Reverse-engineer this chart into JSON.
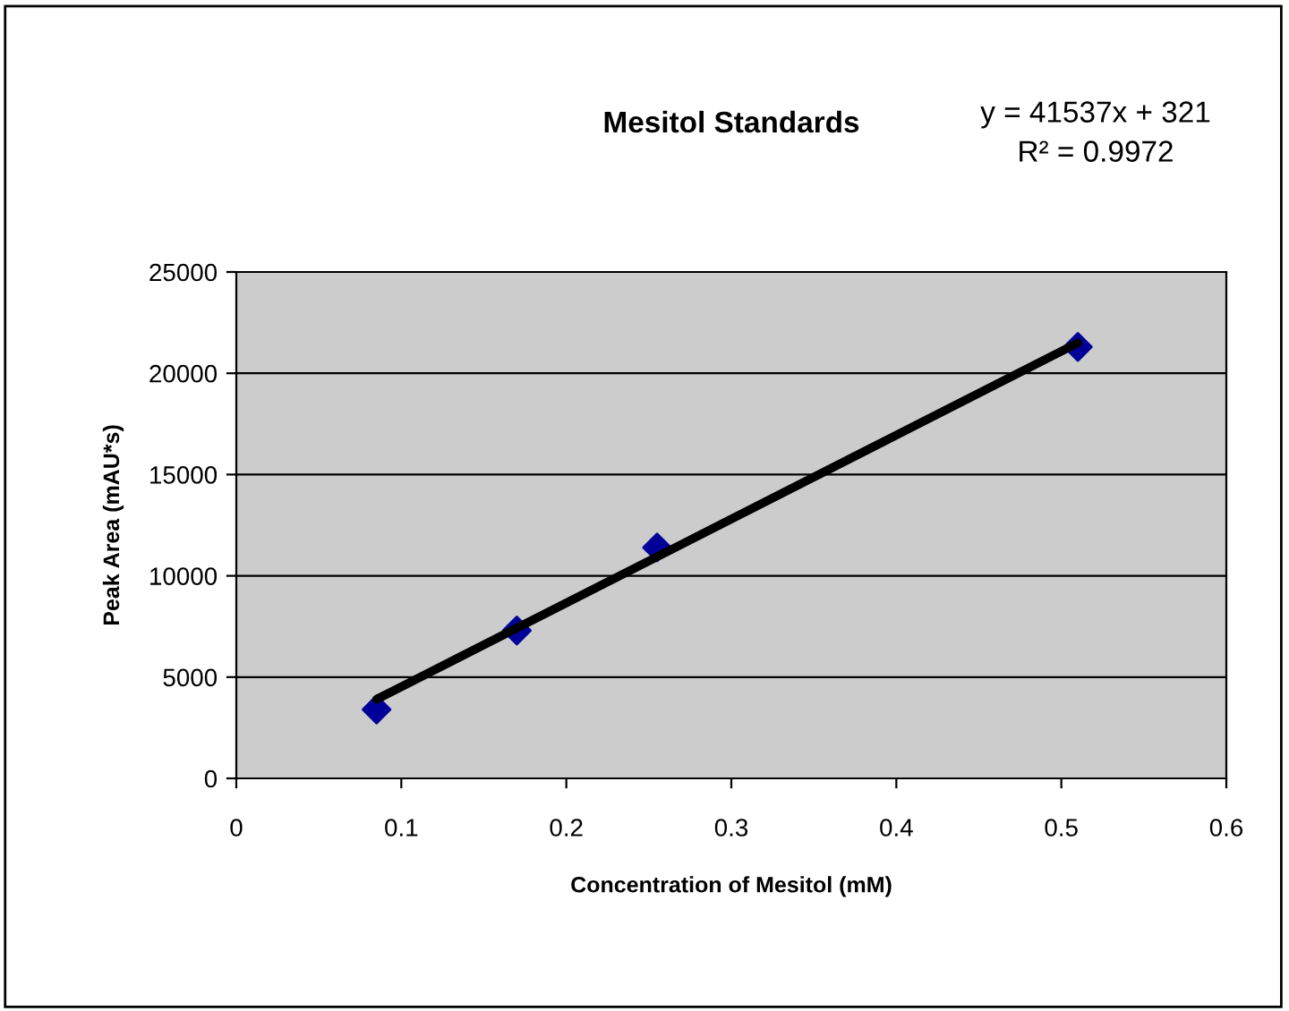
{
  "chart_data": {
    "type": "scatter",
    "title": "Mesitol Standards",
    "xlabel": "Concentration of Mesitol (mM)",
    "ylabel": "Peak Area (mAU*s)",
    "series": [
      {
        "color": "#000099",
        "x": [
          0.085,
          0.17,
          0.255,
          0.51
        ],
        "values": [
          3400,
          7300,
          11400,
          21300
        ],
        "marker": "diamond"
      },
      {
        "type": "line",
        "color": "#000000",
        "x": [
          0.085,
          0.51
        ],
        "values": [
          3900,
          21500
        ],
        "marker": "none",
        "line_style": "solid"
      }
    ],
    "annotations": [
      "y = 41537x + 321",
      "R² = 0.9972"
    ],
    "xlim": [
      0,
      0.6
    ],
    "xticks": [
      0,
      0.1,
      0.2,
      0.3,
      0.4,
      0.5,
      0.6
    ],
    "ylim": [
      0,
      25000
    ],
    "yticks": [
      0,
      5000,
      10000,
      15000,
      20000,
      25000
    ],
    "grid": "y",
    "legend": false
  }
}
